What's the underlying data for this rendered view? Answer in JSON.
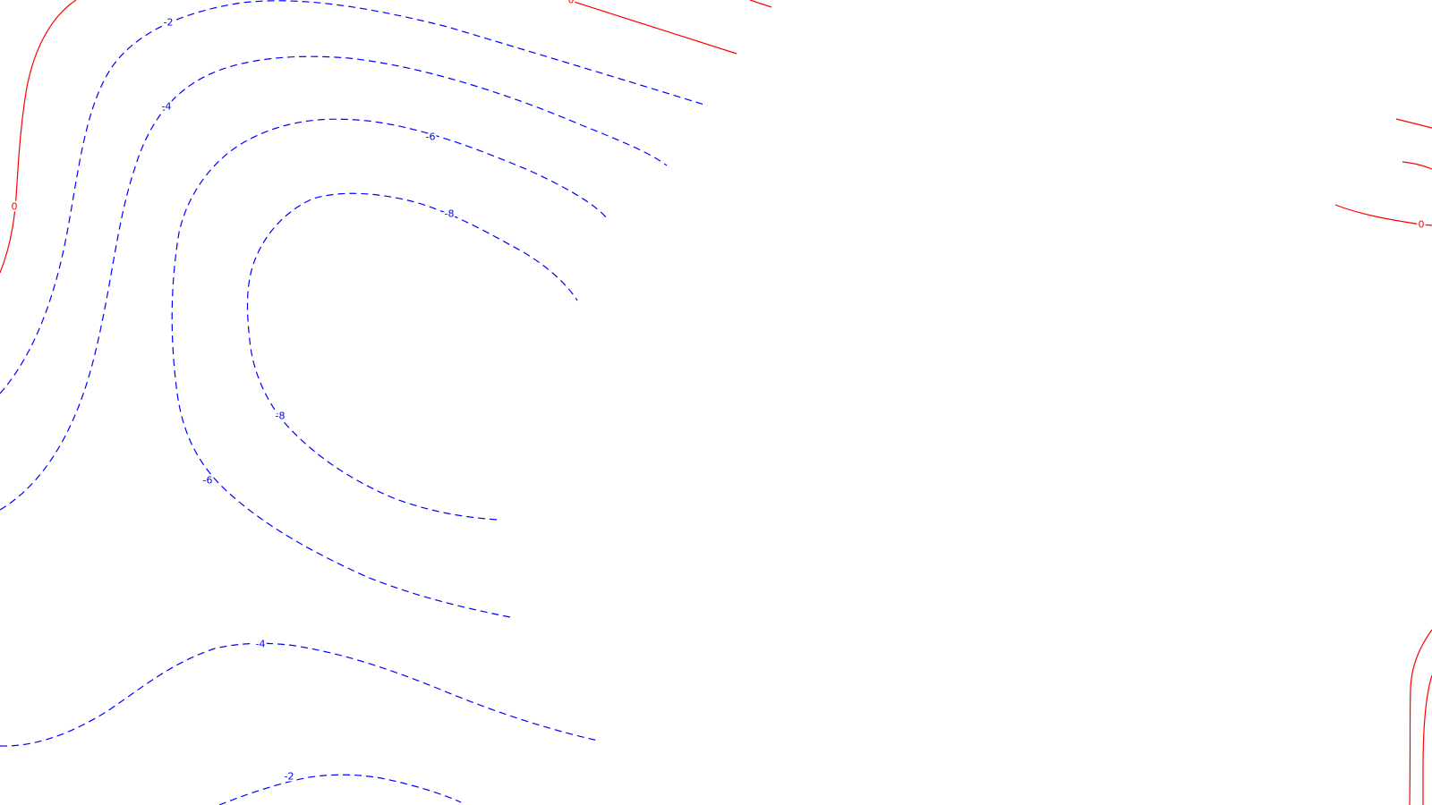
{
  "colors": {
    "background": "#ffffff",
    "negative": "#0000ff",
    "non_negative": "#ff0000"
  },
  "chart_data": {
    "type": "contour",
    "title": "",
    "xlabel": "",
    "ylabel": "",
    "axes_visible": false,
    "grid": false,
    "legend": "none",
    "line_style": {
      "negative_levels": "dashed",
      "non_negative_levels": "solid"
    },
    "contour_labels": [
      "0",
      "-2",
      "-4",
      "-6",
      "-8",
      "-8",
      "-6",
      "-4",
      "-2",
      "0",
      "0"
    ]
  }
}
